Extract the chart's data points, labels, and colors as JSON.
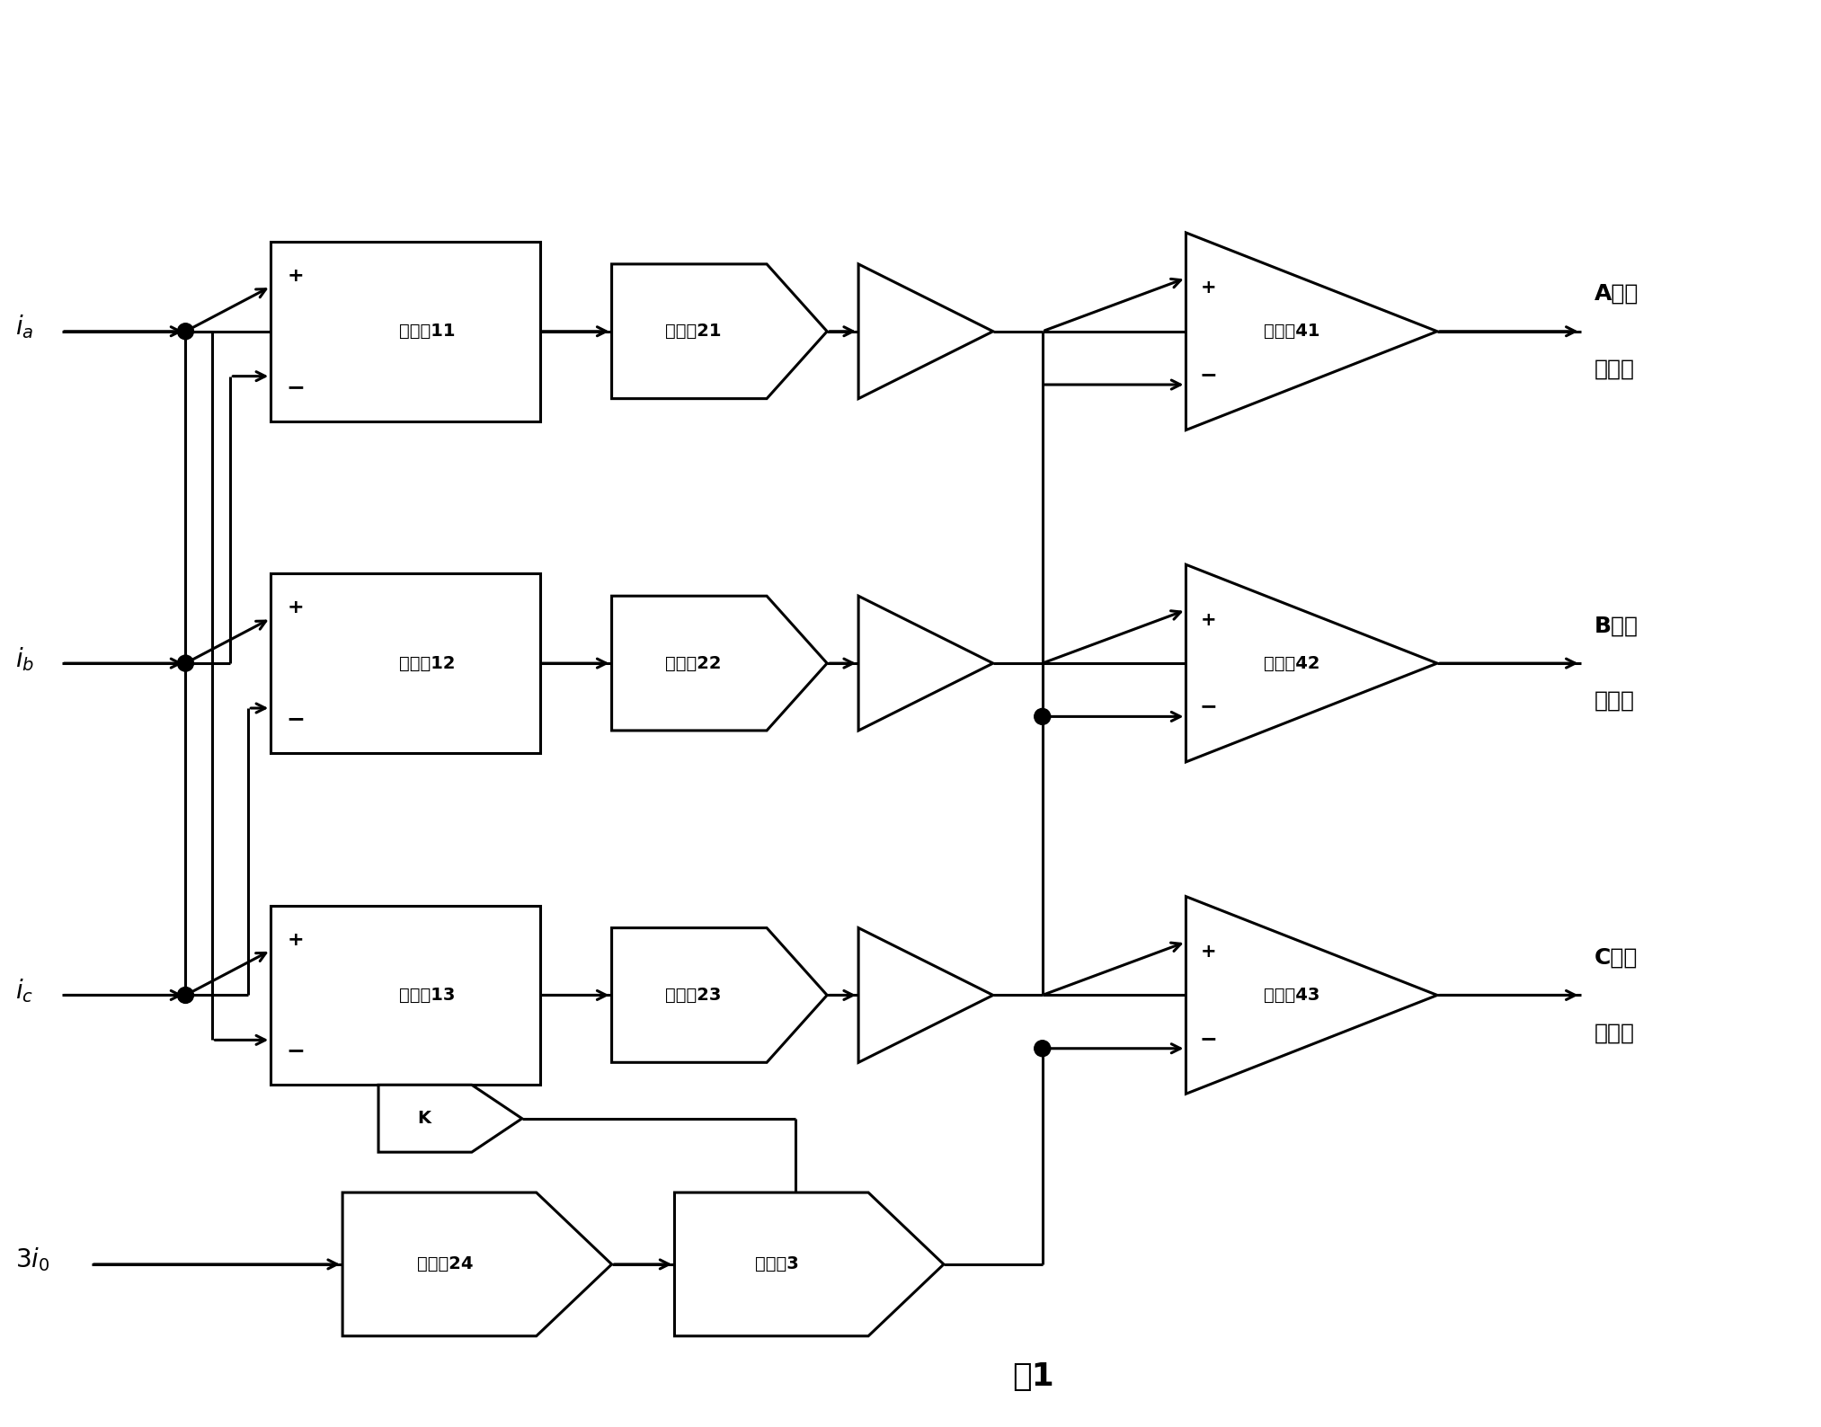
{
  "bg_color": "#ffffff",
  "line_color": "#000000",
  "title": "图1",
  "subtractors": [
    "减法妒11",
    "减法妒12",
    "减法妒13"
  ],
  "filters_left": [
    "滤波妒21",
    "滤波妒22",
    "滤波妒23"
  ],
  "filter_bottom": "滤波妒24",
  "multiplier": "乘法妒3",
  "switch": "K",
  "comparators": [
    "比较妒41",
    "比较妒42",
    "比较妒43"
  ],
  "out_A_line1": "A相制",
  "out_A_line2": "动信号",
  "out_B_line1": "B相制",
  "out_B_line2": "动信号",
  "out_C_line1": "C相制",
  "out_C_line2": "动信号"
}
